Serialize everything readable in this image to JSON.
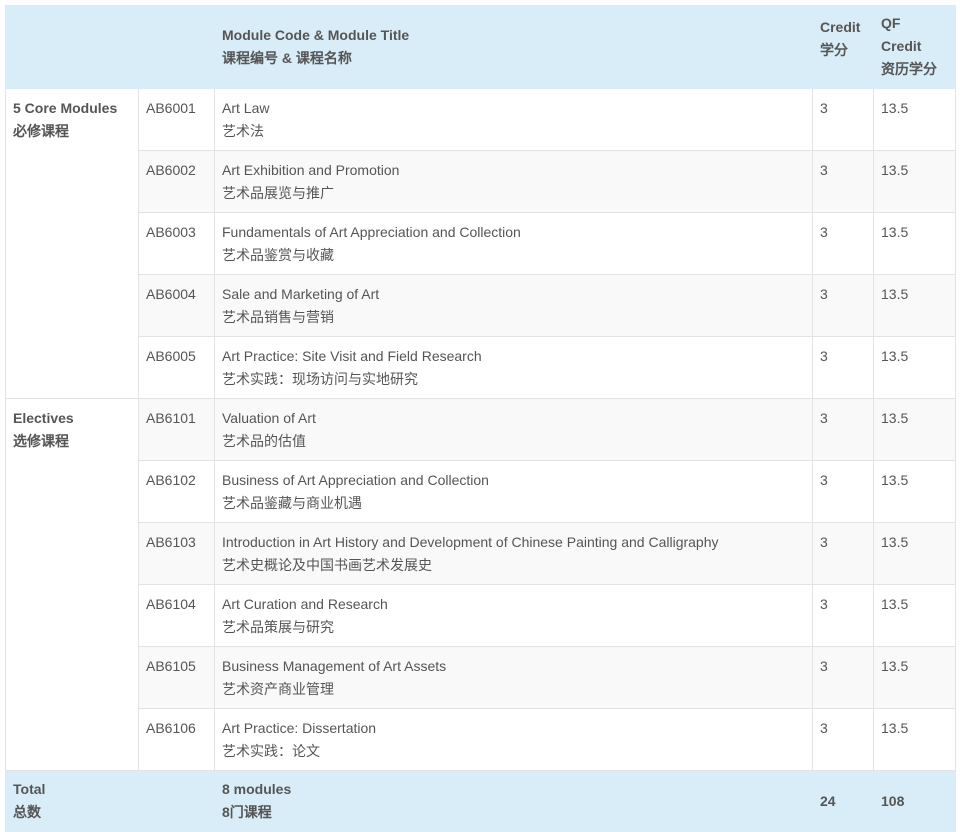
{
  "header": {
    "module_en": "Module Code & Module Title",
    "module_zh": "课程编号 & 课程名称",
    "credit_en": "Credit",
    "credit_zh": "学分",
    "qf_en1": "QF",
    "qf_en2": "Credit",
    "qf_zh": "资历学分"
  },
  "groups": {
    "core": {
      "en": "5 Core Modules",
      "zh": "必修课程"
    },
    "electives": {
      "en": "Electives",
      "zh": "选修课程"
    }
  },
  "rows": [
    {
      "code": "AB6001",
      "title_en": "Art Law",
      "title_zh": "艺术法",
      "credit": "3",
      "qf": "13.5"
    },
    {
      "code": "AB6002",
      "title_en": "Art Exhibition and Promotion",
      "title_zh": "艺术品展览与推广",
      "credit": "3",
      "qf": "13.5"
    },
    {
      "code": "AB6003",
      "title_en": "Fundamentals of Art Appreciation and Collection",
      "title_zh": "艺术品鉴赏与收藏",
      "credit": "3",
      "qf": "13.5"
    },
    {
      "code": "AB6004",
      "title_en": "Sale and Marketing of Art",
      "title_zh": "艺术品销售与营销",
      "credit": "3",
      "qf": "13.5"
    },
    {
      "code": "AB6005",
      "title_en": "Art Practice: Site Visit and Field Research",
      "title_zh": "艺术实践：现场访问与实地研究",
      "credit": "3",
      "qf": "13.5"
    },
    {
      "code": "AB6101",
      "title_en": "Valuation of Art",
      "title_zh": "艺术品的估值",
      "credit": "3",
      "qf": "13.5"
    },
    {
      "code": "AB6102",
      "title_en": "Business of Art Appreciation and Collection",
      "title_zh": "艺术品鉴藏与商业机遇",
      "credit": "3",
      "qf": "13.5"
    },
    {
      "code": "AB6103",
      "title_en": "Introduction in Art History and Development of Chinese Painting and Calligraphy",
      "title_zh": "艺术史概论及中国书画艺术发展史",
      "credit": "3",
      "qf": "13.5"
    },
    {
      "code": "AB6104",
      "title_en": "Art Curation and Research",
      "title_zh": "艺术品策展与研究",
      "credit": "3",
      "qf": "13.5"
    },
    {
      "code": "AB6105",
      "title_en": "Business Management of Art Assets",
      "title_zh": "艺术资产商业管理",
      "credit": "3",
      "qf": "13.5"
    },
    {
      "code": "AB6106",
      "title_en": "Art Practice: Dissertation",
      "title_zh": "艺术实践：论文",
      "credit": "3",
      "qf": "13.5"
    }
  ],
  "total": {
    "label_en": "Total",
    "label_zh": "总数",
    "modules_en": "8 modules",
    "modules_zh": "8门课程",
    "credit": "24",
    "qf": "108"
  }
}
